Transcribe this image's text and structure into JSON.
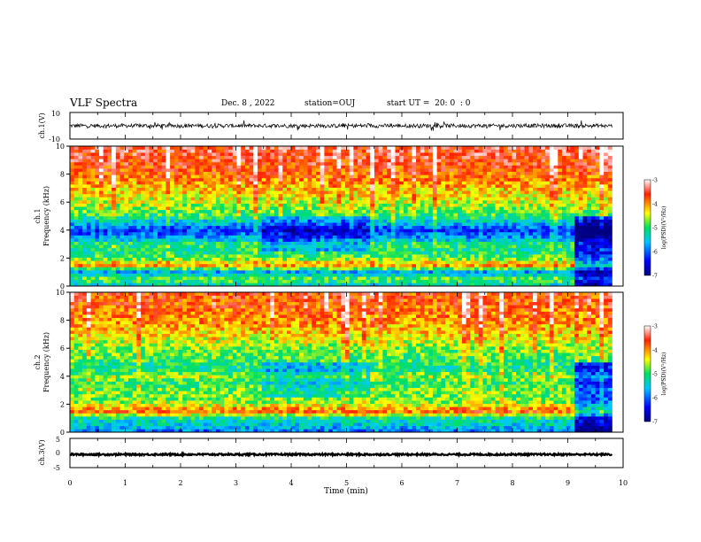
{
  "header": {
    "title": "VLF Spectra",
    "date": "Dec. 8 , 2022",
    "station": "station=OUJ",
    "start": "start UT =  20: 0  : 0"
  },
  "chart_data": [
    {
      "id": "ch1-waveform",
      "type": "line",
      "ylabel": "ch.1(V)",
      "ylim": [
        -10,
        10
      ],
      "y_ticks": [
        "10",
        "-10"
      ],
      "xlim": [
        0,
        10
      ],
      "x_data_end": 9.8,
      "color": "#000000",
      "series": [
        {
          "mean": 0,
          "noise_amplitude": 1.5
        }
      ]
    },
    {
      "id": "ch1-spectrogram",
      "type": "heatmap",
      "ylabel": "ch.1\nFrequency (kHz)",
      "ylabel_lines": [
        "ch.1",
        "Frequency (kHz)"
      ],
      "ylim": [
        0,
        10
      ],
      "y_ticks": [
        "0",
        "2",
        "4",
        "6",
        "8",
        "10"
      ],
      "xlim": [
        0,
        10
      ],
      "x_data_end": 9.8,
      "colorbar": {
        "label": "log(PSD)(V²/Hz)",
        "range": [
          -7,
          -3
        ],
        "ticks": [
          "-3",
          "-4",
          "-5",
          "-6",
          "-7"
        ]
      },
      "profile_khz": [
        0,
        0.5,
        1.0,
        1.5,
        2.0,
        2.5,
        3.0,
        3.5,
        4.0,
        4.5,
        5.0,
        6.0,
        7.0,
        8.0,
        9.0,
        10.0
      ],
      "profile_log_psd": [
        -5.5,
        -4.8,
        -5.8,
        -4.0,
        -4.8,
        -5.2,
        -5.0,
        -5.8,
        -6.2,
        -5.6,
        -5.0,
        -4.5,
        -4.2,
        -3.8,
        -3.6,
        -3.5
      ]
    },
    {
      "id": "ch2-spectrogram",
      "type": "heatmap",
      "ylabel": "ch.2\nFrequency (kHz)",
      "ylabel_lines": [
        "ch.2",
        "Frequency (kHz)"
      ],
      "ylim": [
        0,
        10
      ],
      "y_ticks": [
        "0",
        "2",
        "4",
        "6",
        "8",
        "10"
      ],
      "xlim": [
        0,
        10
      ],
      "x_data_end": 9.8,
      "colorbar": {
        "label": "log(PSD)(V²/Hz)",
        "range": [
          -7,
          -3
        ],
        "ticks": [
          "-3",
          "-4",
          "-5",
          "-6",
          "-7"
        ]
      },
      "profile_khz": [
        0,
        0.5,
        1.0,
        1.5,
        2.0,
        2.5,
        3.0,
        3.5,
        4.0,
        4.5,
        5.0,
        6.0,
        7.0,
        8.0,
        9.0,
        10.0
      ],
      "profile_log_psd": [
        -6.0,
        -5.5,
        -5.2,
        -3.8,
        -4.5,
        -4.8,
        -4.7,
        -5.0,
        -4.6,
        -5.2,
        -5.0,
        -4.7,
        -4.3,
        -4.0,
        -3.8,
        -3.7
      ]
    },
    {
      "id": "ch3-waveform",
      "type": "line",
      "ylabel": "ch.3(V)",
      "ylim": [
        -5,
        5
      ],
      "y_ticks": [
        "5",
        "0",
        "-5"
      ],
      "xlim": [
        0,
        10
      ],
      "x_data_end": 9.8,
      "color": "#000000",
      "series": [
        {
          "mean": -0.5,
          "noise_amplitude": 0.3
        }
      ]
    }
  ],
  "xaxis": {
    "label": "Time (min)",
    "ticks": [
      "0",
      "1",
      "2",
      "3",
      "4",
      "5",
      "6",
      "7",
      "8",
      "9",
      "10"
    ]
  },
  "colors": {
    "axis": "#000000",
    "background": "#ffffff"
  }
}
